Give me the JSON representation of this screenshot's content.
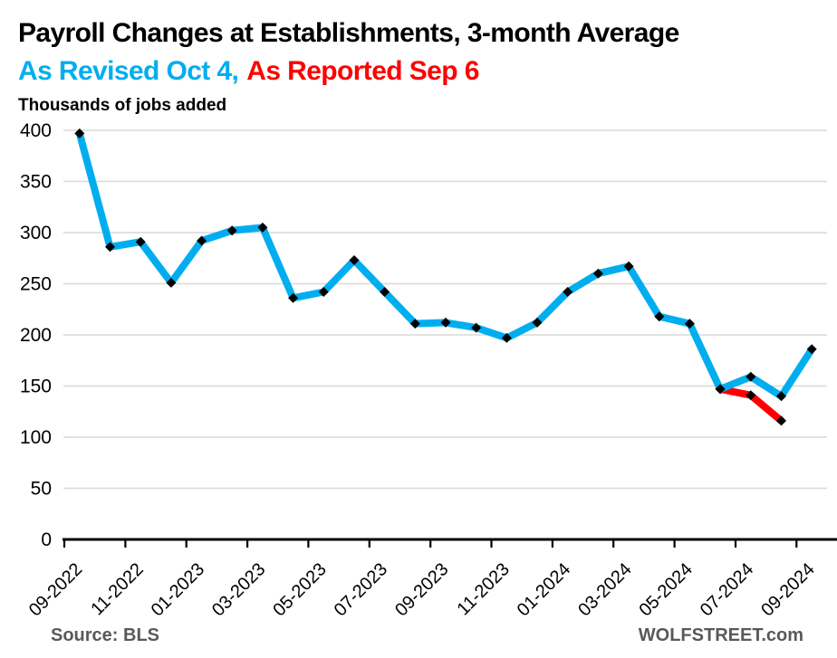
{
  "header": {
    "title": "Payroll Changes at Establishments, 3-month Average",
    "subtitle_revised": "As Revised Oct 4,",
    "subtitle_reported": "As Reported Sep 6",
    "unit_label": "Thousands of jobs added"
  },
  "footer": {
    "source": "Source: BLS",
    "brand": "WOLFSTREET.com"
  },
  "colors": {
    "revised_blue": "#00AEEF",
    "reported_red": "#FF0000",
    "grid": "#D9D9D9",
    "axis": "#000000",
    "marker": "#000000",
    "footer_gray": "#595959"
  },
  "chart_data": {
    "type": "line",
    "title": "Payroll Changes at Establishments, 3-month Average",
    "ylabel": "Thousands of jobs added",
    "ylim": [
      0,
      400
    ],
    "ytick_step": 50,
    "grid": true,
    "legend_position": "subtitle",
    "categories": [
      "09-2022",
      "10-2022",
      "11-2022",
      "12-2022",
      "01-2023",
      "02-2023",
      "03-2023",
      "04-2023",
      "05-2023",
      "06-2023",
      "07-2023",
      "08-2023",
      "09-2023",
      "10-2023",
      "11-2023",
      "12-2023",
      "01-2024",
      "02-2024",
      "03-2024",
      "04-2024",
      "05-2024",
      "06-2024",
      "07-2024",
      "08-2024",
      "09-2024"
    ],
    "xtick_labels": [
      "09-2022",
      "11-2022",
      "01-2023",
      "03-2023",
      "05-2023",
      "07-2023",
      "09-2023",
      "11-2023",
      "01-2024",
      "03-2024",
      "05-2024",
      "07-2024",
      "09-2024"
    ],
    "series": [
      {
        "name": "As Reported Sep 6",
        "color_key": "reported_red",
        "values": [
          null,
          null,
          null,
          null,
          null,
          null,
          null,
          null,
          null,
          null,
          null,
          null,
          null,
          null,
          null,
          null,
          null,
          null,
          null,
          null,
          null,
          147,
          141,
          116,
          null
        ]
      },
      {
        "name": "As Revised Oct 4",
        "color_key": "revised_blue",
        "values": [
          397,
          286,
          291,
          251,
          292,
          302,
          305,
          236,
          242,
          273,
          242,
          211,
          212,
          207,
          197,
          212,
          242,
          260,
          267,
          218,
          211,
          147,
          159,
          140,
          186
        ]
      }
    ]
  }
}
